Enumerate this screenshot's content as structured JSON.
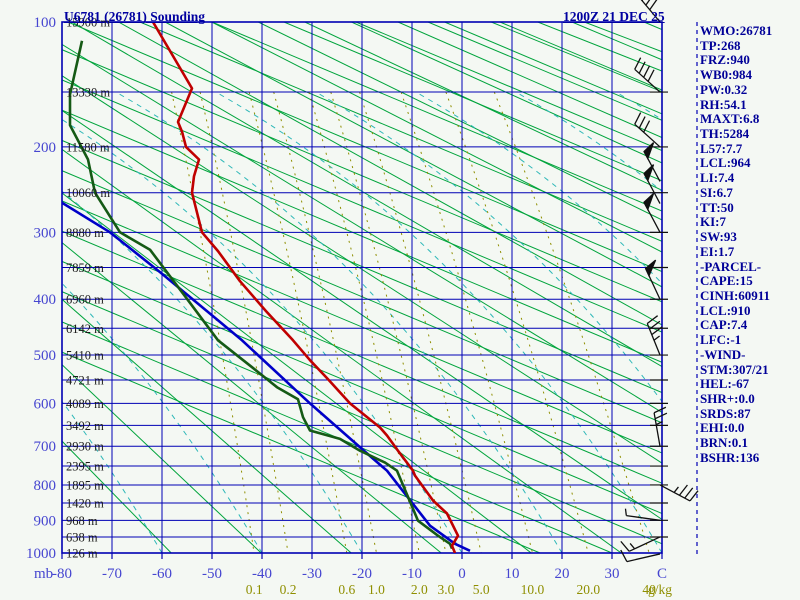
{
  "header": {
    "title": "U6781 (26781) Sounding",
    "datetime": "1200Z 21 DEC 25"
  },
  "colors": {
    "grid": "#0000b4",
    "adiabat": "#00a43c",
    "moist_adiabat": "#2fb8b8",
    "mixing_ratio": "#8f8f00",
    "axis_text": "#4646d0",
    "height_text": "#1a1a1a",
    "stats_text": "#000098",
    "title_text": "#0000a0",
    "temperature_trace": "#c00000",
    "dewpoint_trace": "#155a15",
    "parcel_trace": "#0000c8",
    "barb": "#101010",
    "background": "#f4f8f3"
  },
  "axes": {
    "pressure": {
      "unit": "mb",
      "ticks": [
        100,
        200,
        300,
        400,
        500,
        600,
        700,
        800,
        900,
        1000
      ]
    },
    "temperature": {
      "unit": "C",
      "ticks": [
        "-80",
        "-70",
        "-60",
        "-50",
        "-40",
        "-30",
        "-20",
        "-10",
        "0",
        "10",
        "20",
        "30",
        "C"
      ]
    },
    "mixing_ratio": {
      "unit": "g/kg",
      "ticks": [
        {
          "label": "0.1",
          "w": 0.1
        },
        {
          "label": "0.2",
          "w": 0.2
        },
        {
          "label": "0.6",
          "w": 0.6
        },
        {
          "label": "1.0",
          "w": 1.0
        },
        {
          "label": "2.0",
          "w": 2.0
        },
        {
          "label": "3.0",
          "w": 3.0
        },
        {
          "label": "5.0",
          "w": 5.0
        },
        {
          "label": "10.0",
          "w": 10.0
        },
        {
          "label": "20.0",
          "w": 20.0
        },
        {
          "label": "40",
          "w": 40
        }
      ]
    },
    "heights": [
      {
        "p": 100,
        "label": "15900 m"
      },
      {
        "p": 150,
        "label": "13330 m"
      },
      {
        "p": 200,
        "label": "11580 m"
      },
      {
        "p": 250,
        "label": "10060 m"
      },
      {
        "p": 300,
        "label": "8880 m"
      },
      {
        "p": 350,
        "label": "7859 m"
      },
      {
        "p": 400,
        "label": "6960 m"
      },
      {
        "p": 450,
        "label": "6142 m"
      },
      {
        "p": 500,
        "label": "5410 m"
      },
      {
        "p": 550,
        "label": "4721 m"
      },
      {
        "p": 600,
        "label": "4089 m"
      },
      {
        "p": 650,
        "label": "3492 m"
      },
      {
        "p": 700,
        "label": "2930 m"
      },
      {
        "p": 750,
        "label": "2395 m"
      },
      {
        "p": 800,
        "label": "1895 m"
      },
      {
        "p": 850,
        "label": "1420 m"
      },
      {
        "p": 900,
        "label": "968 m"
      },
      {
        "p": 950,
        "label": "638 m"
      },
      {
        "p": 1000,
        "label": "126 m"
      }
    ]
  },
  "stats": [
    "WMO:26781",
    "TP:268",
    "FRZ:940",
    "WB0:984",
    "PW:0.32",
    "RH:54.1",
    "MAXT:6.8",
    "TH:5284",
    "L57:7.7",
    "LCL:964",
    "LI:7.4",
    "SI:6.7",
    "TT:50",
    "KI:7",
    "SW:93",
    "EI:1.7",
    "-PARCEL-",
    "CAPE:15",
    "CINH:60911",
    "LCL:910",
    "CAP:7.4",
    "LFC:-1",
    "-WIND-",
    "STM:307/21",
    "HEL:-67",
    "SHR+:0.0",
    "SRDS:87",
    "EHI:0.0",
    "BRN:0.1",
    "BSHR:136"
  ],
  "chart_data": {
    "type": "line",
    "diagram": "stuve-sounding",
    "title": "U6781 (26781) Sounding",
    "xlabel": "Temperature (C)",
    "ylabel": "Pressure (mb)",
    "xlim": [
      -80,
      40
    ],
    "ylim": [
      1000,
      100
    ],
    "grid": true,
    "series": [
      {
        "name": "temperature",
        "color": "#c00000",
        "points_p_t": [
          [
            100,
            -61.8
          ],
          [
            147,
            -54
          ],
          [
            176,
            -56.8
          ],
          [
            185,
            -56
          ],
          [
            200,
            -55.2
          ],
          [
            213,
            -52.6
          ],
          [
            231,
            -53.6
          ],
          [
            250,
            -54
          ],
          [
            300,
            -52
          ],
          [
            326,
            -48.8
          ],
          [
            371,
            -44.4
          ],
          [
            420,
            -39.2
          ],
          [
            472,
            -33.8
          ],
          [
            510,
            -30.4
          ],
          [
            546,
            -27
          ],
          [
            600,
            -22.4
          ],
          [
            655,
            -16.4
          ],
          [
            674,
            -15
          ],
          [
            711,
            -12.8
          ],
          [
            762,
            -9.8
          ],
          [
            775,
            -9.4
          ],
          [
            843,
            -5.8
          ],
          [
            880,
            -3
          ],
          [
            946,
            -0.8
          ],
          [
            977,
            -2
          ],
          [
            1000,
            -1.4
          ]
        ]
      },
      {
        "name": "dewpoint",
        "color": "#155a15",
        "points_p_t": [
          [
            112,
            -76
          ],
          [
            152,
            -78.4
          ],
          [
            179,
            -78.4
          ],
          [
            213,
            -74.8
          ],
          [
            250,
            -73.4
          ],
          [
            300,
            -68.4
          ],
          [
            324,
            -62.4
          ],
          [
            395,
            -55.4
          ],
          [
            472,
            -48.8
          ],
          [
            524,
            -42
          ],
          [
            565,
            -37
          ],
          [
            591,
            -32.8
          ],
          [
            631,
            -31.8
          ],
          [
            662,
            -30.4
          ],
          [
            682,
            -24.4
          ],
          [
            711,
            -20.4
          ],
          [
            741,
            -15.4
          ],
          [
            762,
            -13
          ],
          [
            901,
            -8.8
          ],
          [
            946,
            -4.8
          ],
          [
            971,
            -2.4
          ],
          [
            986,
            -2
          ]
        ]
      },
      {
        "name": "parcel",
        "color": "#0000c8",
        "points_p_t": [
          [
            262,
            -80
          ],
          [
            300,
            -70.4
          ],
          [
            357,
            -60.4
          ],
          [
            472,
            -44
          ],
          [
            600,
            -30.4
          ],
          [
            731,
            -17.8
          ],
          [
            762,
            -15
          ],
          [
            916,
            -6.4
          ],
          [
            971,
            -1.4
          ],
          [
            993,
            1.6
          ]
        ]
      }
    ],
    "wind_barbs": [
      {
        "p": 100,
        "angle": 130,
        "pennants": 0,
        "full": 4,
        "half": 0
      },
      {
        "p": 150,
        "angle": 138,
        "pennants": 0,
        "full": 4,
        "half": 0
      },
      {
        "p": 200,
        "angle": 138,
        "pennants": 0,
        "full": 3,
        "half": 0
      },
      {
        "p": 237,
        "angle": 118,
        "pennants": 1,
        "full": 0,
        "half": 0
      },
      {
        "p": 263,
        "angle": 118,
        "pennants": 1,
        "full": 0,
        "half": 0
      },
      {
        "p": 300,
        "angle": 118,
        "pennants": 1,
        "full": 0,
        "half": 0
      },
      {
        "p": 400,
        "angle": 115,
        "pennants": 1,
        "full": 0,
        "half": 0
      },
      {
        "p": 500,
        "angle": 112,
        "pennants": 0,
        "full": 3,
        "half": 1
      },
      {
        "p": 700,
        "angle": 100,
        "pennants": 0,
        "full": 2,
        "half": 1
      },
      {
        "p": 800,
        "angle": -28,
        "pennants": 0,
        "full": 3,
        "half": 1
      },
      {
        "p": 900,
        "angle": 172,
        "pennants": 0,
        "full": 0,
        "half": 1
      },
      {
        "p": 950,
        "angle": 205,
        "pennants": 0,
        "full": 1,
        "half": 1
      },
      {
        "p": 1003,
        "angle": 193,
        "pennants": 0,
        "full": 1,
        "half": 0
      }
    ]
  }
}
